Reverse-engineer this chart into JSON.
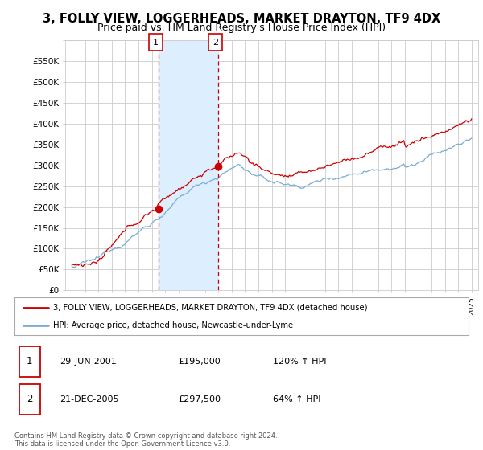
{
  "title": "3, FOLLY VIEW, LOGGERHEADS, MARKET DRAYTON, TF9 4DX",
  "subtitle": "Price paid vs. HM Land Registry's House Price Index (HPI)",
  "ylim": [
    0,
    600000
  ],
  "yticks": [
    0,
    50000,
    100000,
    150000,
    200000,
    250000,
    300000,
    350000,
    400000,
    450000,
    500000,
    550000,
    600000
  ],
  "ytick_labels": [
    "£0",
    "£50K",
    "£100K",
    "£150K",
    "£200K",
    "£250K",
    "£300K",
    "£350K",
    "£400K",
    "£450K",
    "£500K",
    "£550K",
    ""
  ],
  "sale1": {
    "date_num": 2001.49,
    "price": 195000,
    "label": "1",
    "date_str": "29-JUN-2001",
    "pct": "120%"
  },
  "sale2": {
    "date_num": 2005.97,
    "price": 297500,
    "label": "2",
    "date_str": "21-DEC-2005",
    "pct": "64%"
  },
  "red_line_color": "#cc0000",
  "blue_line_color": "#7aadd4",
  "shade_color": "#ddeeff",
  "background_color": "#ffffff",
  "grid_color": "#cccccc",
  "legend_label_red": "3, FOLLY VIEW, LOGGERHEADS, MARKET DRAYTON, TF9 4DX (detached house)",
  "legend_label_blue": "HPI: Average price, detached house, Newcastle-under-Lyme",
  "footnote": "Contains HM Land Registry data © Crown copyright and database right 2024.\nThis data is licensed under the Open Government Licence v3.0.",
  "title_fontsize": 10.5,
  "subtitle_fontsize": 9
}
